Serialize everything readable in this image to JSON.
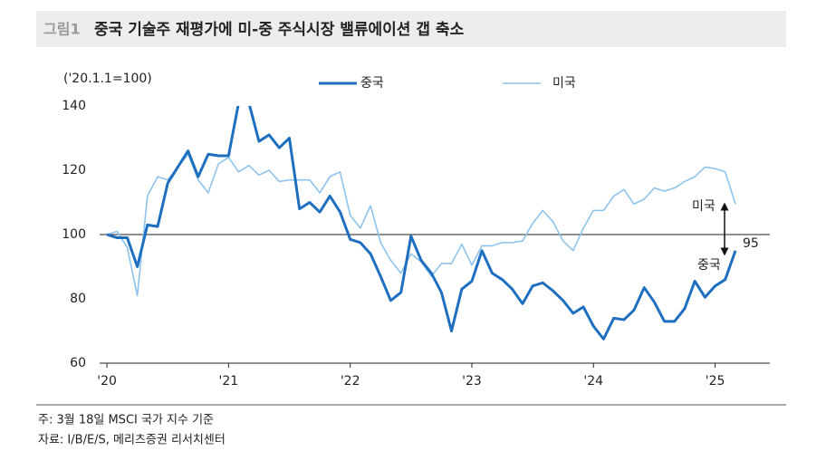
{
  "chart_data": {
    "type": "line",
    "figure_label": "그림1",
    "title": "중국 기술주 재평가에 미-중 주식시장 밸류에이션 갭 축소",
    "y_unit": "('20.1.1=100)",
    "notes": [
      "주: 3월 18일 MSCI 국가 지수 기준",
      "자료: I/B/E/S, 메리츠증권 리서치센터"
    ],
    "x": [
      2020,
      2020.083,
      2020.167,
      2020.25,
      2020.333,
      2020.417,
      2020.5,
      2020.583,
      2020.667,
      2020.75,
      2020.833,
      2020.917,
      2021,
      2021.083,
      2021.167,
      2021.25,
      2021.333,
      2021.417,
      2021.5,
      2021.583,
      2021.667,
      2021.75,
      2021.833,
      2021.917,
      2022,
      2022.083,
      2022.167,
      2022.25,
      2022.333,
      2022.417,
      2022.5,
      2022.583,
      2022.667,
      2022.75,
      2022.833,
      2022.917,
      2023,
      2023.083,
      2023.167,
      2023.25,
      2023.333,
      2023.417,
      2023.5,
      2023.583,
      2023.667,
      2023.75,
      2023.833,
      2023.917,
      2024,
      2024.083,
      2024.167,
      2024.25,
      2024.333,
      2024.417,
      2024.5,
      2024.583,
      2024.667,
      2024.75,
      2024.833,
      2024.917,
      2025,
      2025.083,
      2025.167
    ],
    "series": [
      {
        "name": "중국",
        "color": "#1f6fc0",
        "width": 3,
        "values": [
          100,
          99,
          99,
          90,
          103,
          102.5,
          116,
          121,
          126,
          118,
          125,
          124.5,
          124.5,
          141,
          141,
          129,
          131,
          127,
          130,
          108,
          110,
          107,
          112,
          107,
          98.5,
          97.5,
          94,
          87,
          79.5,
          82,
          99.5,
          92,
          88,
          82,
          70,
          83,
          85.5,
          95,
          88,
          86,
          83,
          78.5,
          84,
          85,
          82.5,
          79.5,
          75.5,
          77.5,
          71.5,
          67.5,
          74,
          73.5,
          76.5,
          83.5,
          79,
          73,
          73,
          77,
          85.5,
          80.5,
          84,
          86,
          95
        ]
      },
      {
        "name": "미국",
        "color": "#8ec3eb",
        "width": 1.6,
        "values": [
          100,
          101,
          96,
          81,
          112,
          118,
          117,
          121,
          125,
          117,
          113,
          122,
          124,
          119.5,
          121.5,
          118.5,
          120,
          116.5,
          117,
          117,
          117,
          113,
          118,
          119.5,
          106,
          102,
          109,
          97.5,
          92,
          88,
          94,
          91.5,
          87,
          91,
          91,
          97,
          90.5,
          96.5,
          96.5,
          97.5,
          97.5,
          98,
          103.5,
          107.5,
          104,
          98,
          95,
          102,
          107.5,
          107.5,
          112,
          114,
          109.5,
          111,
          114.5,
          113.5,
          114.5,
          116.5,
          118,
          121,
          120.5,
          119.5,
          109.5
        ]
      }
    ],
    "xlim": [
      2019.94,
      2025.45
    ],
    "xticks": [
      {
        "value": 2020,
        "label": "'20"
      },
      {
        "value": 2021,
        "label": "'21"
      },
      {
        "value": 2022,
        "label": "'22"
      },
      {
        "value": 2023,
        "label": "'23"
      },
      {
        "value": 2024,
        "label": "'24"
      },
      {
        "value": 2025,
        "label": "'25"
      }
    ],
    "ylim": [
      60,
      140
    ],
    "yticks": [
      60,
      80,
      100,
      120,
      140
    ],
    "reference_line": 100,
    "annotations": [
      "미국",
      "중국"
    ]
  }
}
